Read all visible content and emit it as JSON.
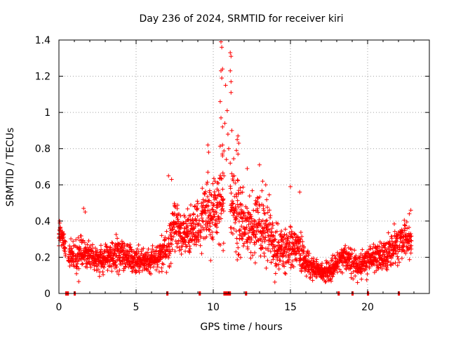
{
  "chart_data": {
    "type": "scatter",
    "title": "Day 236 of 2024, SRMTID for receiver kiri",
    "xlabel": "GPS time / hours",
    "ylabel": "SRMTID / TECUs",
    "xlim": [
      0,
      24
    ],
    "ylim": [
      0,
      1.4
    ],
    "x_ticks": [
      0,
      5,
      10,
      15,
      20
    ],
    "x_tick_labels": [
      "0",
      "5",
      "10",
      "15",
      "20"
    ],
    "y_ticks": [
      0,
      0.2,
      0.4,
      0.6,
      0.8,
      1.0,
      1.2,
      1.4
    ],
    "y_tick_labels": [
      "0",
      "0.2",
      "0.4",
      "0.6",
      "0.8",
      "1",
      "1.2",
      "1.4"
    ],
    "grid": true,
    "marker": "plus",
    "series": [
      {
        "name": "SRMTID",
        "color": "#ff0000",
        "profile_x": [
          0.0,
          0.5,
          1.0,
          1.5,
          2.0,
          2.5,
          3.0,
          3.5,
          4.0,
          4.5,
          5.0,
          5.5,
          6.0,
          6.5,
          7.0,
          7.5,
          8.0,
          8.5,
          9.0,
          9.5,
          10.0,
          10.5,
          11.0,
          11.5,
          12.0,
          12.5,
          13.0,
          13.5,
          14.0,
          14.5,
          15.0,
          15.5,
          16.0,
          16.5,
          17.0,
          17.5,
          18.0,
          18.5,
          19.0,
          19.5,
          20.0,
          20.5,
          21.0,
          21.5,
          22.0,
          22.5,
          23.0
        ],
        "profile_center": [
          0.35,
          0.22,
          0.19,
          0.23,
          0.21,
          0.19,
          0.2,
          0.21,
          0.22,
          0.2,
          0.19,
          0.18,
          0.18,
          0.2,
          0.25,
          0.38,
          0.33,
          0.34,
          0.38,
          0.42,
          0.45,
          0.5,
          0.55,
          0.42,
          0.38,
          0.35,
          0.42,
          0.35,
          0.25,
          0.24,
          0.27,
          0.25,
          0.18,
          0.14,
          0.11,
          0.12,
          0.17,
          0.2,
          0.16,
          0.15,
          0.18,
          0.2,
          0.21,
          0.23,
          0.28,
          0.3,
          0.3
        ],
        "profile_spread": [
          0.06,
          0.06,
          0.07,
          0.1,
          0.06,
          0.06,
          0.06,
          0.06,
          0.07,
          0.06,
          0.06,
          0.06,
          0.05,
          0.06,
          0.1,
          0.12,
          0.08,
          0.1,
          0.12,
          0.14,
          0.16,
          0.2,
          0.22,
          0.18,
          0.12,
          0.12,
          0.16,
          0.14,
          0.12,
          0.1,
          0.1,
          0.08,
          0.07,
          0.05,
          0.04,
          0.05,
          0.05,
          0.05,
          0.06,
          0.06,
          0.06,
          0.07,
          0.07,
          0.08,
          0.08,
          0.08,
          0.08
        ],
        "data_gaps_hours": [
          0.45,
          0.6,
          1.0,
          1.05,
          7.0,
          7.05,
          9.1,
          9.15,
          10.7,
          11.1,
          12.1,
          12.15,
          18.1,
          18.15,
          19.0,
          19.05,
          20.0,
          20.05,
          22.0,
          22.05
        ],
        "notable_points": [
          {
            "x": 10.5,
            "y": 1.39
          },
          {
            "x": 10.55,
            "y": 1.36
          },
          {
            "x": 11.1,
            "y": 1.33
          },
          {
            "x": 11.15,
            "y": 1.31
          },
          {
            "x": 10.6,
            "y": 1.24
          },
          {
            "x": 10.5,
            "y": 1.23
          },
          {
            "x": 11.1,
            "y": 1.23
          },
          {
            "x": 10.55,
            "y": 1.19
          },
          {
            "x": 11.15,
            "y": 1.17
          },
          {
            "x": 10.8,
            "y": 1.15
          },
          {
            "x": 11.15,
            "y": 1.11
          },
          {
            "x": 10.45,
            "y": 1.06
          },
          {
            "x": 10.9,
            "y": 1.01
          },
          {
            "x": 10.5,
            "y": 0.97
          },
          {
            "x": 10.75,
            "y": 0.94
          },
          {
            "x": 10.6,
            "y": 0.92
          },
          {
            "x": 11.2,
            "y": 0.9
          },
          {
            "x": 10.95,
            "y": 0.88
          },
          {
            "x": 11.6,
            "y": 0.87
          },
          {
            "x": 11.55,
            "y": 0.85
          },
          {
            "x": 11.65,
            "y": 0.83
          },
          {
            "x": 9.65,
            "y": 0.82
          },
          {
            "x": 10.6,
            "y": 0.82
          },
          {
            "x": 11.0,
            "y": 0.8
          },
          {
            "x": 11.5,
            "y": 0.79
          },
          {
            "x": 9.7,
            "y": 0.78
          },
          {
            "x": 11.6,
            "y": 0.77
          },
          {
            "x": 10.6,
            "y": 0.76
          },
          {
            "x": 10.85,
            "y": 0.74
          },
          {
            "x": 11.1,
            "y": 0.72
          },
          {
            "x": 12.2,
            "y": 0.69
          },
          {
            "x": 9.65,
            "y": 0.67
          },
          {
            "x": 7.1,
            "y": 0.65
          },
          {
            "x": 7.3,
            "y": 0.63
          },
          {
            "x": 13.2,
            "y": 0.62
          },
          {
            "x": 13.4,
            "y": 0.6
          },
          {
            "x": 15.0,
            "y": 0.59
          },
          {
            "x": 15.6,
            "y": 0.56
          },
          {
            "x": 1.6,
            "y": 0.47
          },
          {
            "x": 1.7,
            "y": 0.45
          },
          {
            "x": 0.05,
            "y": 0.4
          },
          {
            "x": 22.8,
            "y": 0.46
          },
          {
            "x": 22.7,
            "y": 0.44
          },
          {
            "x": 0.0,
            "y": 0.33
          }
        ]
      }
    ]
  }
}
